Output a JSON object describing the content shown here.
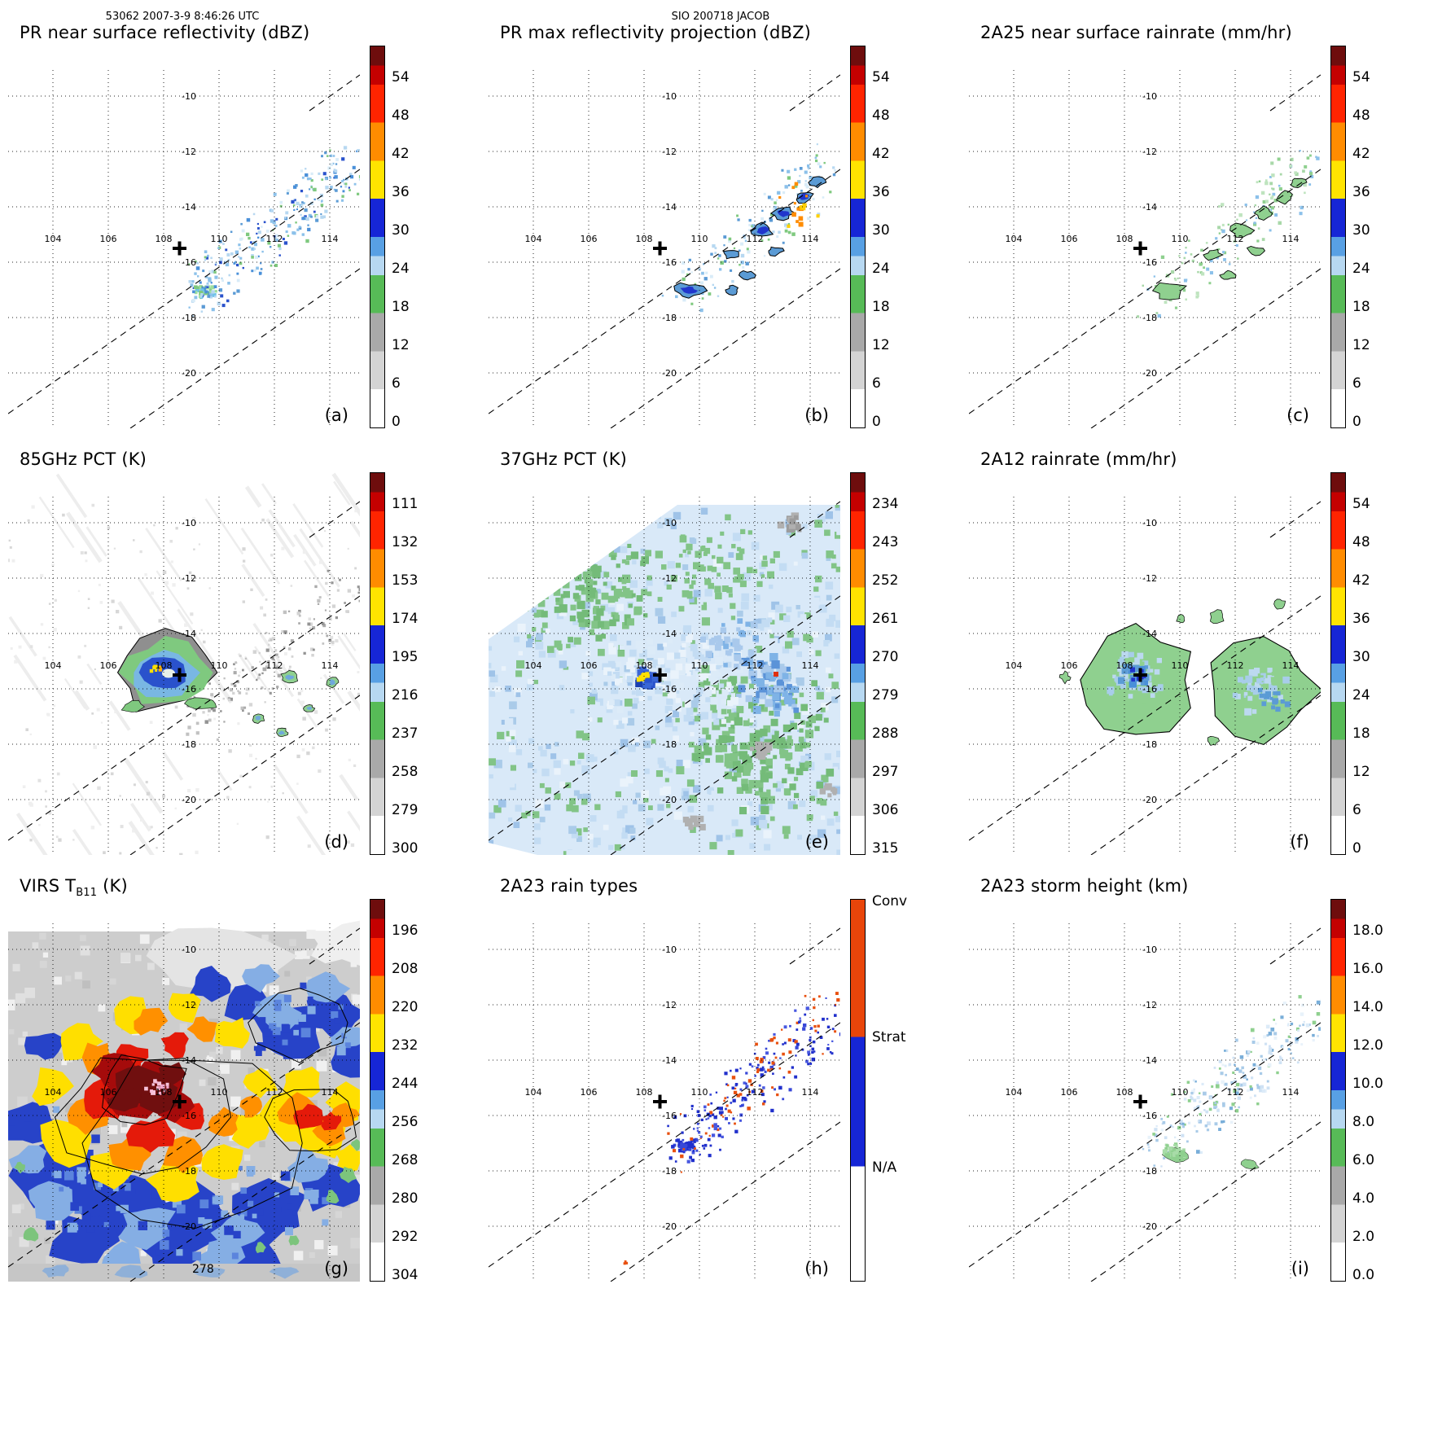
{
  "header": {
    "left": "53062 2007-3-9 8:46:26 UTC",
    "center": "SIO 200718 JACOB"
  },
  "axes": {
    "lon_ticks": [
      "104",
      "106",
      "108",
      "110",
      "112",
      "114"
    ],
    "lat_ticks": [
      "-10",
      "-12",
      "-14",
      "-16",
      "-18",
      "-20"
    ]
  },
  "marker": {
    "symbol": "+",
    "lon": 108.6,
    "lat": -15.3
  },
  "panels": [
    {
      "key": "a",
      "title": "PR near surface reflectivity (dBZ)",
      "letter": "(a)",
      "colorbar": {
        "kind": "reflectivity",
        "unit": "dBZ",
        "ticks": [
          "54",
          "48",
          "42",
          "36",
          "30",
          "24",
          "18",
          "12",
          "6",
          "0"
        ]
      }
    },
    {
      "key": "b",
      "title": "PR max reflectivity projection (dBZ)",
      "letter": "(b)",
      "colorbar": {
        "kind": "reflectivity",
        "unit": "dBZ",
        "ticks": [
          "54",
          "48",
          "42",
          "36",
          "30",
          "24",
          "18",
          "12",
          "6",
          "0"
        ]
      }
    },
    {
      "key": "c",
      "title": "2A25 near surface rainrate (mm/hr)",
      "letter": "(c)",
      "colorbar": {
        "kind": "rainrate",
        "unit": "mm/hr",
        "ticks": [
          "54",
          "48",
          "42",
          "36",
          "30",
          "24",
          "18",
          "12",
          "6",
          "0"
        ]
      }
    },
    {
      "key": "d",
      "title": "85GHz PCT (K)",
      "letter": "(d)",
      "colorbar": {
        "kind": "temperature",
        "unit": "K",
        "ticks": [
          "111",
          "132",
          "153",
          "174",
          "195",
          "216",
          "237",
          "258",
          "279",
          "300"
        ]
      }
    },
    {
      "key": "e",
      "title": "37GHz PCT (K)",
      "letter": "(e)",
      "colorbar": {
        "kind": "temperature",
        "unit": "K",
        "ticks": [
          "234",
          "243",
          "252",
          "261",
          "270",
          "279",
          "288",
          "297",
          "306",
          "315"
        ]
      }
    },
    {
      "key": "f",
      "title": "2A12 rainrate (mm/hr)",
      "letter": "(f)",
      "colorbar": {
        "kind": "rainrate",
        "unit": "mm/hr",
        "ticks": [
          "54",
          "48",
          "42",
          "36",
          "30",
          "24",
          "18",
          "12",
          "6",
          "0"
        ]
      }
    },
    {
      "key": "g",
      "title": "VIRS TB11 (K)",
      "title_parts": {
        "pre": "VIRS T",
        "sub": "B11",
        "post": " (K)"
      },
      "letter": "(g)",
      "annotation": "278",
      "colorbar": {
        "kind": "temperature",
        "unit": "K",
        "ticks": [
          "196",
          "208",
          "220",
          "232",
          "244",
          "256",
          "268",
          "280",
          "292",
          "304"
        ]
      }
    },
    {
      "key": "h",
      "title": "2A23 rain types",
      "letter": "(h)",
      "colorbar": {
        "kind": "categories",
        "labels": [
          "Conv",
          "Strat",
          "N/A"
        ]
      }
    },
    {
      "key": "i",
      "title": "2A23 storm height (km)",
      "letter": "(i)",
      "colorbar": {
        "kind": "height",
        "unit": "km",
        "ticks": [
          "18.0",
          "16.0",
          "14.0",
          "12.0",
          "10.0",
          "8.0",
          "6.0",
          "4.0",
          "2.0",
          "0.0"
        ]
      }
    }
  ],
  "chart_data": [
    {
      "panel": "(a)",
      "type": "heatmap",
      "title": "PR near surface reflectivity (dBZ)",
      "x_ticks": [
        104,
        106,
        108,
        110,
        112,
        114
      ],
      "y_ticks": [
        -10,
        -12,
        -14,
        -16,
        -18,
        -20
      ],
      "colorbar_unit": "dBZ",
      "colorbar_ticks": [
        54,
        48,
        42,
        36,
        30,
        24,
        18,
        12,
        6,
        0
      ],
      "marker": {
        "symbol": "+",
        "lon": 108.6,
        "lat": -15.3
      }
    },
    {
      "panel": "(b)",
      "type": "heatmap",
      "title": "PR max reflectivity projection (dBZ)",
      "x_ticks": [
        104,
        106,
        108,
        110,
        112,
        114
      ],
      "y_ticks": [
        -10,
        -12,
        -14,
        -16,
        -18,
        -20
      ],
      "colorbar_unit": "dBZ",
      "colorbar_ticks": [
        54,
        48,
        42,
        36,
        30,
        24,
        18,
        12,
        6,
        0
      ]
    },
    {
      "panel": "(c)",
      "type": "heatmap",
      "title": "2A25 near surface rainrate (mm/hr)",
      "x_ticks": [
        104,
        106,
        108,
        110,
        112,
        114
      ],
      "y_ticks": [
        -10,
        -12,
        -14,
        -16,
        -18,
        -20
      ],
      "colorbar_unit": "mm/hr",
      "colorbar_ticks": [
        54,
        48,
        42,
        36,
        30,
        24,
        18,
        12,
        6,
        0
      ]
    },
    {
      "panel": "(d)",
      "type": "heatmap",
      "title": "85GHz PCT (K)",
      "x_ticks": [
        104,
        106,
        108,
        110,
        112,
        114
      ],
      "y_ticks": [
        -10,
        -12,
        -14,
        -16,
        -18,
        -20
      ],
      "colorbar_unit": "K",
      "colorbar_ticks": [
        111,
        132,
        153,
        174,
        195,
        216,
        237,
        258,
        279,
        300
      ]
    },
    {
      "panel": "(e)",
      "type": "heatmap",
      "title": "37GHz PCT (K)",
      "x_ticks": [
        104,
        106,
        108,
        110,
        112,
        114
      ],
      "y_ticks": [
        -10,
        -12,
        -14,
        -16,
        -18,
        -20
      ],
      "colorbar_unit": "K",
      "colorbar_ticks": [
        234,
        243,
        252,
        261,
        270,
        279,
        288,
        297,
        306,
        315
      ]
    },
    {
      "panel": "(f)",
      "type": "heatmap",
      "title": "2A12 rainrate (mm/hr)",
      "x_ticks": [
        104,
        106,
        108,
        110,
        112,
        114
      ],
      "y_ticks": [
        -10,
        -12,
        -14,
        -16,
        -18,
        -20
      ],
      "colorbar_unit": "mm/hr",
      "colorbar_ticks": [
        54,
        48,
        42,
        36,
        30,
        24,
        18,
        12,
        6,
        0
      ]
    },
    {
      "panel": "(g)",
      "type": "heatmap",
      "title": "VIRS TB11 (K)",
      "x_ticks": [
        104,
        106,
        108,
        110,
        112,
        114
      ],
      "y_ticks": [
        -10,
        -12,
        -14,
        -16,
        -18,
        -20
      ],
      "colorbar_unit": "K",
      "colorbar_ticks": [
        196,
        208,
        220,
        232,
        244,
        256,
        268,
        280,
        292,
        304
      ],
      "annotation": "278"
    },
    {
      "panel": "(h)",
      "type": "heatmap",
      "title": "2A23 rain types",
      "x_ticks": [
        104,
        106,
        108,
        110,
        112,
        114
      ],
      "y_ticks": [
        -10,
        -12,
        -14,
        -16,
        -18,
        -20
      ],
      "legend": [
        "Conv",
        "Strat",
        "N/A"
      ]
    },
    {
      "panel": "(i)",
      "type": "heatmap",
      "title": "2A23 storm height (km)",
      "x_ticks": [
        104,
        106,
        108,
        110,
        112,
        114
      ],
      "y_ticks": [
        -10,
        -12,
        -14,
        -16,
        -18,
        -20
      ],
      "colorbar_unit": "km",
      "colorbar_ticks": [
        18.0,
        16.0,
        14.0,
        12.0,
        10.0,
        8.0,
        6.0,
        4.0,
        2.0,
        0.0
      ]
    }
  ]
}
